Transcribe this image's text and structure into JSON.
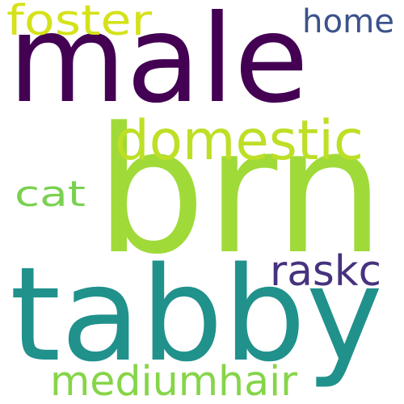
{
  "words": [
    {
      "text": "male",
      "color": "#440154",
      "weight": "largest"
    },
    {
      "text": "brn",
      "color": "#a0da39",
      "weight": "largest"
    },
    {
      "text": "tabby",
      "color": "#21918c",
      "weight": "large"
    },
    {
      "text": "domestic",
      "color": "#bddf26",
      "weight": "medium"
    },
    {
      "text": "foster",
      "color": "#d5e21a",
      "weight": "small"
    },
    {
      "text": "home",
      "color": "#3b528b",
      "weight": "small"
    },
    {
      "text": "raskc",
      "color": "#46327e",
      "weight": "small"
    },
    {
      "text": "cat",
      "color": "#7ad151",
      "weight": "small"
    },
    {
      "text": "mediumhair",
      "color": "#86d549",
      "weight": "small"
    }
  ]
}
